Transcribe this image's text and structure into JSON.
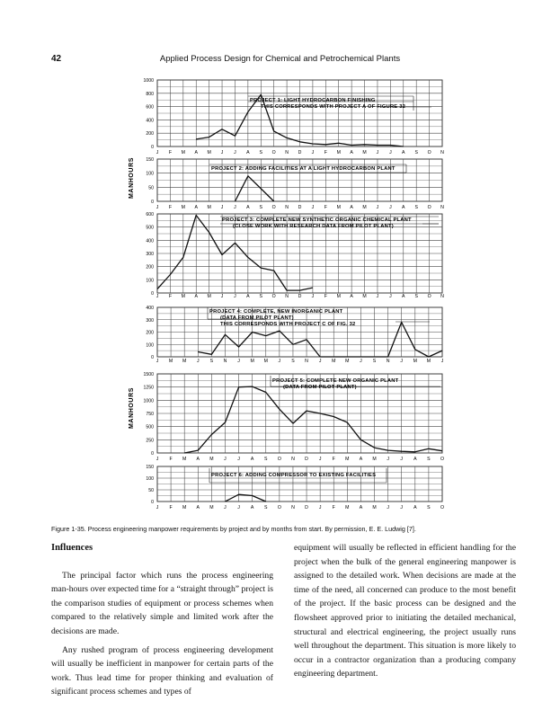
{
  "header": {
    "page_number": "42",
    "running_title": "Applied Process Design for Chemical and Petrochemical Plants"
  },
  "figure": {
    "y_axis_label_upper": "MANHOURS",
    "y_axis_label_lower": "MANHOURS",
    "caption": "Figure 1-35. Process engineering manpower requirements by project and by months from start. By permission, E. E. Ludwig [7].",
    "panels": [
      {
        "id": "p1",
        "title_lines": [
          "PROJECT 1: LIGHT HYDROCARBON FINISHING",
          "THIS CORRESPONDS WITH PROJECT A OF FIGURE 32"
        ],
        "y_ticks": [
          "1000",
          "800",
          "600",
          "400",
          "200",
          "0"
        ],
        "months": [
          "J",
          "F",
          "M",
          "A",
          "M",
          "J",
          "J",
          "A",
          "S",
          "O",
          "N",
          "D",
          "J",
          "F",
          "M",
          "A",
          "M",
          "J",
          "J",
          "A",
          "S",
          "O",
          "N"
        ]
      },
      {
        "id": "p2",
        "title_lines": [
          "PROJECT 2: ADDING FACILITIES AT A LIGHT HYDROCARBON PLANT"
        ],
        "y_ticks": [
          "150",
          "100",
          "50",
          "0"
        ],
        "months": [
          "J",
          "F",
          "M",
          "A",
          "M",
          "J",
          "J",
          "A",
          "S",
          "O",
          "N",
          "D",
          "J",
          "F",
          "M",
          "A",
          "M",
          "J",
          "J",
          "A",
          "S",
          "O",
          "N"
        ]
      },
      {
        "id": "p3",
        "title_lines": [
          "PROJECT 3: COMPLETE NEW SYNTHETIC ORGANIC CHEMICAL PLANT",
          "(CLOSE WORK WITH RESEARCH DATA FROM PILOT PLANT)"
        ],
        "y_ticks": [
          "600",
          "500",
          "400",
          "300",
          "200",
          "100",
          "0"
        ],
        "months": [
          "J",
          "F",
          "M",
          "A",
          "M",
          "J",
          "J",
          "A",
          "S",
          "O",
          "N",
          "D",
          "J",
          "F",
          "M",
          "A",
          "M",
          "J",
          "J",
          "A",
          "S",
          "O",
          "N"
        ]
      },
      {
        "id": "p4",
        "title_lines": [
          "PROJECT 4: COMPLETE, NEW INORGANIC PLANT",
          "(DATA FROM PILOT PLANT)",
          "THIS CORRESPONDS WITH PROJECT C OF FIG. 32"
        ],
        "y_ticks": [
          "400",
          "300",
          "200",
          "100",
          "0"
        ],
        "months": [
          "J",
          "M",
          "M",
          "J",
          "S",
          "N",
          "J",
          "M",
          "M",
          "J",
          "S",
          "N",
          "J",
          "M",
          "M",
          "J",
          "S",
          "N",
          "J",
          "M",
          "M",
          "J"
        ]
      },
      {
        "id": "p5",
        "title_lines": [
          "PROJECT 5: COMPLETE NEW ORGANIC PLANT",
          "(DATA FROM PILOT PLANT)"
        ],
        "y_ticks": [
          "1500",
          "1250",
          "1000",
          "750",
          "500",
          "250",
          "0"
        ],
        "months": [
          "J",
          "F",
          "M",
          "A",
          "M",
          "J",
          "J",
          "A",
          "S",
          "O",
          "N",
          "D",
          "J",
          "F",
          "M",
          "A",
          "M",
          "J",
          "J",
          "A",
          "S",
          "O"
        ]
      },
      {
        "id": "p6",
        "title_lines": [
          "PROJECT 6: ADDING COMPRESSOR TO EXISTING FACILITIES"
        ],
        "y_ticks": [
          "150",
          "100",
          "50",
          "0"
        ],
        "months": [
          "J",
          "F",
          "M",
          "A",
          "M",
          "J",
          "J",
          "A",
          "S",
          "O",
          "N",
          "D",
          "J",
          "F",
          "M",
          "A",
          "M",
          "J",
          "J",
          "A",
          "S",
          "O"
        ]
      }
    ]
  },
  "chart_data": [
    {
      "type": "line",
      "title": "PROJECT 1: LIGHT HYDROCARBON FINISHING",
      "ylabel": "MANHOURS",
      "ylim": [
        0,
        1000
      ],
      "x": [
        "J",
        "F",
        "M",
        "A",
        "M",
        "J",
        "J",
        "A",
        "S",
        "O",
        "N",
        "D",
        "J",
        "F",
        "M",
        "A",
        "M",
        "J",
        "J",
        "A",
        "S",
        "O",
        "N"
      ],
      "series": [
        {
          "values": [
            null,
            null,
            null,
            110,
            140,
            260,
            160,
            520,
            780,
            230,
            130,
            70,
            40,
            30,
            50,
            20,
            30,
            20,
            20,
            0,
            null,
            null,
            null
          ]
        }
      ]
    },
    {
      "type": "line",
      "title": "PROJECT 2: ADDING FACILITIES AT A LIGHT HYDROCARBON PLANT",
      "ylabel": "MANHOURS",
      "ylim": [
        0,
        150
      ],
      "x": [
        "J",
        "F",
        "M",
        "A",
        "M",
        "J",
        "J",
        "A",
        "S",
        "O",
        "N",
        "D",
        "J",
        "F",
        "M",
        "A",
        "M",
        "J",
        "J",
        "A",
        "S",
        "O",
        "N"
      ],
      "series": [
        {
          "values": [
            null,
            null,
            null,
            null,
            null,
            null,
            0,
            90,
            45,
            0,
            null,
            null,
            null,
            null,
            null,
            null,
            null,
            null,
            null,
            null,
            null,
            null,
            null
          ]
        }
      ]
    },
    {
      "type": "line",
      "title": "PROJECT 3: COMPLETE NEW SYNTHETIC ORGANIC CHEMICAL PLANT",
      "ylabel": "MANHOURS",
      "ylim": [
        0,
        600
      ],
      "x": [
        "J",
        "F",
        "M",
        "A",
        "M",
        "J",
        "J",
        "A",
        "S",
        "O",
        "N",
        "D",
        "J",
        "F",
        "M",
        "A",
        "M",
        "J",
        "J",
        "A",
        "S",
        "O",
        "N"
      ],
      "series": [
        {
          "values": [
            30,
            140,
            270,
            590,
            460,
            290,
            380,
            270,
            190,
            170,
            20,
            20,
            40,
            null,
            null,
            null,
            null,
            null,
            null,
            null,
            null,
            null,
            null
          ]
        }
      ]
    },
    {
      "type": "line",
      "title": "PROJECT 4: COMPLETE, NEW INORGANIC PLANT",
      "ylabel": "MANHOURS",
      "ylim": [
        0,
        400
      ],
      "x": [
        "J",
        "M",
        "M",
        "J",
        "S",
        "N",
        "J",
        "M",
        "M",
        "J",
        "S",
        "N",
        "J",
        "M",
        "M",
        "J",
        "S",
        "N",
        "J",
        "M",
        "M",
        "J"
      ],
      "series": [
        {
          "values": [
            null,
            null,
            null,
            40,
            20,
            180,
            80,
            200,
            170,
            210,
            100,
            140,
            0,
            0,
            0,
            0,
            0,
            0,
            280,
            60,
            0,
            50
          ]
        }
      ]
    },
    {
      "type": "line",
      "title": "PROJECT 5: COMPLETE NEW ORGANIC PLANT",
      "ylabel": "MANHOURS",
      "ylim": [
        0,
        1500
      ],
      "x": [
        "J",
        "F",
        "M",
        "A",
        "M",
        "J",
        "J",
        "A",
        "S",
        "O",
        "N",
        "D",
        "J",
        "F",
        "M",
        "A",
        "M",
        "J",
        "J",
        "A",
        "S",
        "O"
      ],
      "series": [
        {
          "values": [
            null,
            null,
            0,
            50,
            350,
            580,
            1250,
            1260,
            1150,
            830,
            560,
            800,
            750,
            690,
            580,
            250,
            100,
            50,
            30,
            20,
            80,
            40
          ]
        }
      ]
    },
    {
      "type": "line",
      "title": "PROJECT 6: ADDING COMPRESSOR TO EXISTING FACILITIES",
      "ylabel": "MANHOURS",
      "ylim": [
        0,
        150
      ],
      "x": [
        "J",
        "F",
        "M",
        "A",
        "M",
        "J",
        "J",
        "A",
        "S",
        "O",
        "N",
        "D",
        "J",
        "F",
        "M",
        "A",
        "M",
        "J",
        "J",
        "A",
        "S",
        "O"
      ],
      "series": [
        {
          "values": [
            null,
            null,
            null,
            null,
            null,
            0,
            30,
            25,
            0,
            null,
            null,
            null,
            null,
            null,
            null,
            null,
            null,
            null,
            null,
            null,
            null,
            null
          ]
        }
      ]
    }
  ],
  "body": {
    "heading": "Influences",
    "left_paragraphs": [
      "The principal factor which runs the process engineering man-hours over expected time for a “straight through” project is the comparison studies of equipment or process schemes when compared to the relatively simple and limited work after the decisions are made.",
      "Any rushed program of process engineering development will usually be inefficient in manpower for certain parts of the work. Thus lead time for proper thinking and evaluation of significant process schemes and types of"
    ],
    "right_paragraph": "equipment will usually be reflected in efficient handling for the project when the bulk of the general engineering manpower is assigned to the detailed work. When decisions are made at the time of the need, all concerned can produce to the most benefit of the project. If the basic process can be designed and the flowsheet approved prior to initiating the detailed mechanical, structural and electrical engineering, the project usually runs well throughout the department. This situation is more likely to occur in a contractor organization than a producing company engineering department."
  }
}
